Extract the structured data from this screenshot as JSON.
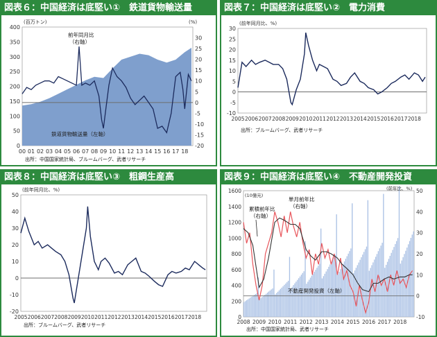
{
  "panels": [
    {
      "title": "図表６：中国経済は底堅い①　鉄道貨物輸送量",
      "source": "出所：中国国家統計局、ブルームバーグ、武者リサーチ",
      "left_unit": "(百万トン)",
      "right_unit": "(%)",
      "ann_area": "鉄道貨物輸送量（左軸）",
      "ann_line": "前年同月比",
      "ann_line2": "（右軸）"
    },
    {
      "title": "図表７：中国経済は底堅い②　電力消費",
      "source": "出所：ブルームバーグ、武者リサーチ",
      "unit": "(前年同月比、%)"
    },
    {
      "title": "図表８：中国経済は底堅い③　粗鋼生産高",
      "source": "出所：ブルームバーグ、武者リサーチ",
      "unit": "(前年同月比、%)"
    },
    {
      "title": "図表９：中国経済は底堅い④　不動産開発投資",
      "source": "出所：中国国家統計局、武者リサーチ",
      "left_unit": "(10億元)",
      "right_unit": "(前年比、%)",
      "ann_cum": "累積前年比",
      "ann_cum2": "（右軸）",
      "ann_mon": "単月前年比",
      "ann_mon2": "（右軸）",
      "ann_bar": "不動産開発投資（左軸）"
    }
  ],
  "chart_data": [
    {
      "type": "area",
      "title": "図表６：中国経済は底堅い①　鉄道貨物輸送量",
      "x_ticks": [
        "00",
        "01",
        "02",
        "03",
        "04",
        "05",
        "06",
        "07",
        "08",
        "09",
        "10",
        "11",
        "12",
        "13",
        "14",
        "15",
        "16",
        "17",
        "18"
      ],
      "xlim": [
        2000,
        2018.9
      ],
      "ylim_left": [
        0,
        400
      ],
      "yticks_left": [
        0,
        50,
        100,
        150,
        200,
        250,
        300,
        350,
        400
      ],
      "ylim_right": [
        -20,
        35
      ],
      "yticks_right": [
        -20,
        -15,
        -10,
        -5,
        0,
        5,
        10,
        15,
        20,
        25,
        30
      ],
      "series": [
        {
          "name": "鉄道貨物輸送量（左軸）",
          "axis": "left",
          "x": [
            2000,
            2001,
            2002,
            2003,
            2004,
            2005,
            2006,
            2007,
            2008,
            2009,
            2010,
            2011,
            2012,
            2013,
            2014,
            2015,
            2016,
            2017,
            2018,
            2018.75
          ],
          "y": [
            135,
            140,
            148,
            160,
            175,
            190,
            205,
            220,
            232,
            228,
            260,
            290,
            300,
            310,
            305,
            290,
            280,
            290,
            315,
            330
          ]
        },
        {
          "name": "前年同月比（右軸）",
          "axis": "right",
          "x": [
            2000,
            2000.5,
            2001,
            2001.5,
            2002,
            2002.5,
            2003,
            2003.5,
            2004,
            2004.5,
            2005,
            2005.5,
            2006,
            2006.3,
            2006.6,
            2007,
            2007.5,
            2008,
            2008.5,
            2008.8,
            2009,
            2009.3,
            2009.6,
            2010,
            2010.5,
            2011,
            2011.5,
            2012,
            2012.5,
            2013,
            2013.5,
            2014,
            2014.5,
            2015,
            2015.5,
            2016,
            2016.5,
            2017,
            2017.5,
            2017.8,
            2018,
            2018.4,
            2018.75
          ],
          "y": [
            4,
            7,
            6,
            8,
            9,
            10,
            10,
            9,
            12,
            11,
            10,
            9,
            8,
            26,
            8,
            9,
            8,
            10,
            3,
            -8,
            -12,
            -2,
            8,
            16,
            12,
            10,
            7,
            2,
            -1,
            1,
            3,
            0,
            -3,
            -12,
            -11,
            -14,
            -5,
            12,
            14,
            6,
            -3,
            13,
            10
          ]
        }
      ]
    },
    {
      "type": "line",
      "title": "図表７：中国経済は底堅い②　電力消費",
      "x_ticks": [
        "2005",
        "2006",
        "2007",
        "2008",
        "2009",
        "2010",
        "2011",
        "2012",
        "2013",
        "2014",
        "2015",
        "2016",
        "2017",
        "2018"
      ],
      "xlim": [
        2005,
        2018.9
      ],
      "ylim": [
        -10,
        30
      ],
      "yticks": [
        -10,
        -5,
        0,
        5,
        10,
        15,
        20,
        25,
        30
      ],
      "series": [
        {
          "name": "",
          "x": [
            2005,
            2005.3,
            2005.6,
            2006,
            2006.3,
            2006.6,
            2007,
            2007.3,
            2007.6,
            2008,
            2008.3,
            2008.6,
            2008.9,
            2009,
            2009.3,
            2009.6,
            2009.9,
            2010,
            2010.2,
            2010.5,
            2010.8,
            2011,
            2011.3,
            2011.6,
            2012,
            2012.3,
            2012.6,
            2013,
            2013.3,
            2013.6,
            2014,
            2014.3,
            2014.6,
            2015,
            2015.3,
            2015.6,
            2016,
            2016.3,
            2016.6,
            2017,
            2017.3,
            2017.6,
            2018,
            2018.3,
            2018.6,
            2018.8
          ],
          "y": [
            2,
            14,
            12,
            15,
            13,
            14,
            15,
            14,
            13,
            13,
            11,
            6,
            -5,
            -6,
            1,
            6,
            18,
            28,
            22,
            15,
            10,
            13,
            12,
            11,
            6,
            5,
            3,
            4,
            7,
            9,
            5,
            4,
            2,
            1,
            -1,
            0,
            2,
            4,
            5,
            7,
            8,
            6,
            9,
            8,
            5,
            7
          ]
        }
      ]
    },
    {
      "type": "line",
      "title": "図表８：中国経済は底堅い③　粗鋼生産高",
      "x_ticks": [
        "2005",
        "2006",
        "2007",
        "2008",
        "2009",
        "2010",
        "2011",
        "2012",
        "2013",
        "2014",
        "2015",
        "2016",
        "2017",
        "2018"
      ],
      "xlim": [
        2005,
        2018.9
      ],
      "ylim": [
        -20,
        50
      ],
      "yticks": [
        -20,
        -10,
        0,
        10,
        20,
        30,
        40,
        50
      ],
      "series": [
        {
          "name": "",
          "x": [
            2005,
            2005.3,
            2005.6,
            2006,
            2006.3,
            2006.6,
            2007,
            2007.3,
            2007.6,
            2008,
            2008.3,
            2008.6,
            2008.9,
            2009,
            2009.3,
            2009.6,
            2009.9,
            2010,
            2010.2,
            2010.5,
            2010.8,
            2011,
            2011.3,
            2011.6,
            2012,
            2012.3,
            2012.6,
            2013,
            2013.3,
            2013.6,
            2014,
            2014.3,
            2014.6,
            2015,
            2015.3,
            2015.6,
            2016,
            2016.3,
            2016.6,
            2017,
            2017.3,
            2017.6,
            2018,
            2018.3,
            2018.6,
            2018.8
          ],
          "y": [
            27,
            36,
            28,
            20,
            22,
            18,
            20,
            18,
            16,
            14,
            10,
            2,
            -12,
            -15,
            0,
            15,
            30,
            43,
            25,
            10,
            5,
            10,
            12,
            9,
            3,
            4,
            2,
            8,
            10,
            12,
            4,
            3,
            1,
            -2,
            -4,
            -5,
            2,
            4,
            3,
            4,
            6,
            5,
            10,
            8,
            6,
            5
          ]
        }
      ]
    },
    {
      "type": "bar",
      "title": "図表９：中国経済は底堅い④　不動産開発投資",
      "x_ticks": [
        "2008",
        "2009",
        "2010",
        "2011",
        "2012",
        "2013",
        "2014",
        "2015",
        "2016",
        "2017",
        "2018"
      ],
      "xlim": [
        2008,
        2018.9
      ],
      "ylim_left": [
        0,
        1600
      ],
      "yticks_left": [
        0,
        200,
        400,
        600,
        800,
        1000,
        1200,
        1400,
        1600
      ],
      "ylim_right": [
        -10,
        50
      ],
      "yticks_right": [
        -10,
        0,
        10,
        20,
        30,
        40,
        50
      ],
      "bar_series": {
        "name": "不動産開発投資（左軸）",
        "x_start": 2008,
        "annual_levels": [
          250,
          300,
          380,
          480,
          560,
          650,
          720,
          740,
          780,
          830,
          900
        ],
        "december_spike_factor": 1.6
      },
      "series": [
        {
          "name": "累積前年比（右軸）",
          "axis": "right",
          "x": [
            2008,
            2008.3,
            2008.6,
            2009,
            2009.3,
            2009.6,
            2010,
            2010.3,
            2010.6,
            2011,
            2011.3,
            2011.6,
            2012,
            2012.3,
            2012.6,
            2013,
            2013.3,
            2013.6,
            2014,
            2014.3,
            2014.6,
            2015,
            2015.3,
            2015.6,
            2016,
            2016.3,
            2016.6,
            2017,
            2017.3,
            2017.6,
            2018,
            2018.3,
            2018.6,
            2018.8
          ],
          "y": [
            32,
            30,
            24,
            4,
            8,
            18,
            35,
            37,
            36,
            34,
            34,
            32,
            22,
            19,
            17,
            21,
            21,
            20,
            18,
            15,
            13,
            10,
            6,
            3,
            2,
            6,
            6,
            8,
            9,
            8,
            9,
            9,
            10,
            10
          ]
        },
        {
          "name": "単月前年比（右軸）",
          "axis": "right",
          "x": [
            2008,
            2008.2,
            2008.4,
            2008.6,
            2008.8,
            2009,
            2009.2,
            2009.4,
            2009.6,
            2009.8,
            2010,
            2010.2,
            2010.4,
            2010.6,
            2010.8,
            2011,
            2011.2,
            2011.4,
            2011.6,
            2011.8,
            2012,
            2012.2,
            2012.4,
            2012.6,
            2012.8,
            2013,
            2013.2,
            2013.4,
            2013.6,
            2013.8,
            2014,
            2014.2,
            2014.4,
            2014.6,
            2014.8,
            2015,
            2015.2,
            2015.4,
            2015.6,
            2015.8,
            2016,
            2016.2,
            2016.4,
            2016.6,
            2016.8,
            2017,
            2017.2,
            2017.4,
            2017.6,
            2017.8,
            2018,
            2018.2,
            2018.4,
            2018.6,
            2018.8
          ],
          "y": [
            35,
            25,
            30,
            15,
            5,
            -2,
            5,
            20,
            25,
            30,
            40,
            35,
            28,
            38,
            30,
            40,
            33,
            28,
            35,
            25,
            18,
            22,
            10,
            20,
            15,
            25,
            18,
            22,
            15,
            20,
            10,
            18,
            8,
            12,
            5,
            2,
            -5,
            5,
            -2,
            -8,
            -3,
            8,
            2,
            10,
            5,
            8,
            2,
            10,
            5,
            12,
            6,
            8,
            4,
            10,
            12
          ]
        }
      ]
    }
  ]
}
